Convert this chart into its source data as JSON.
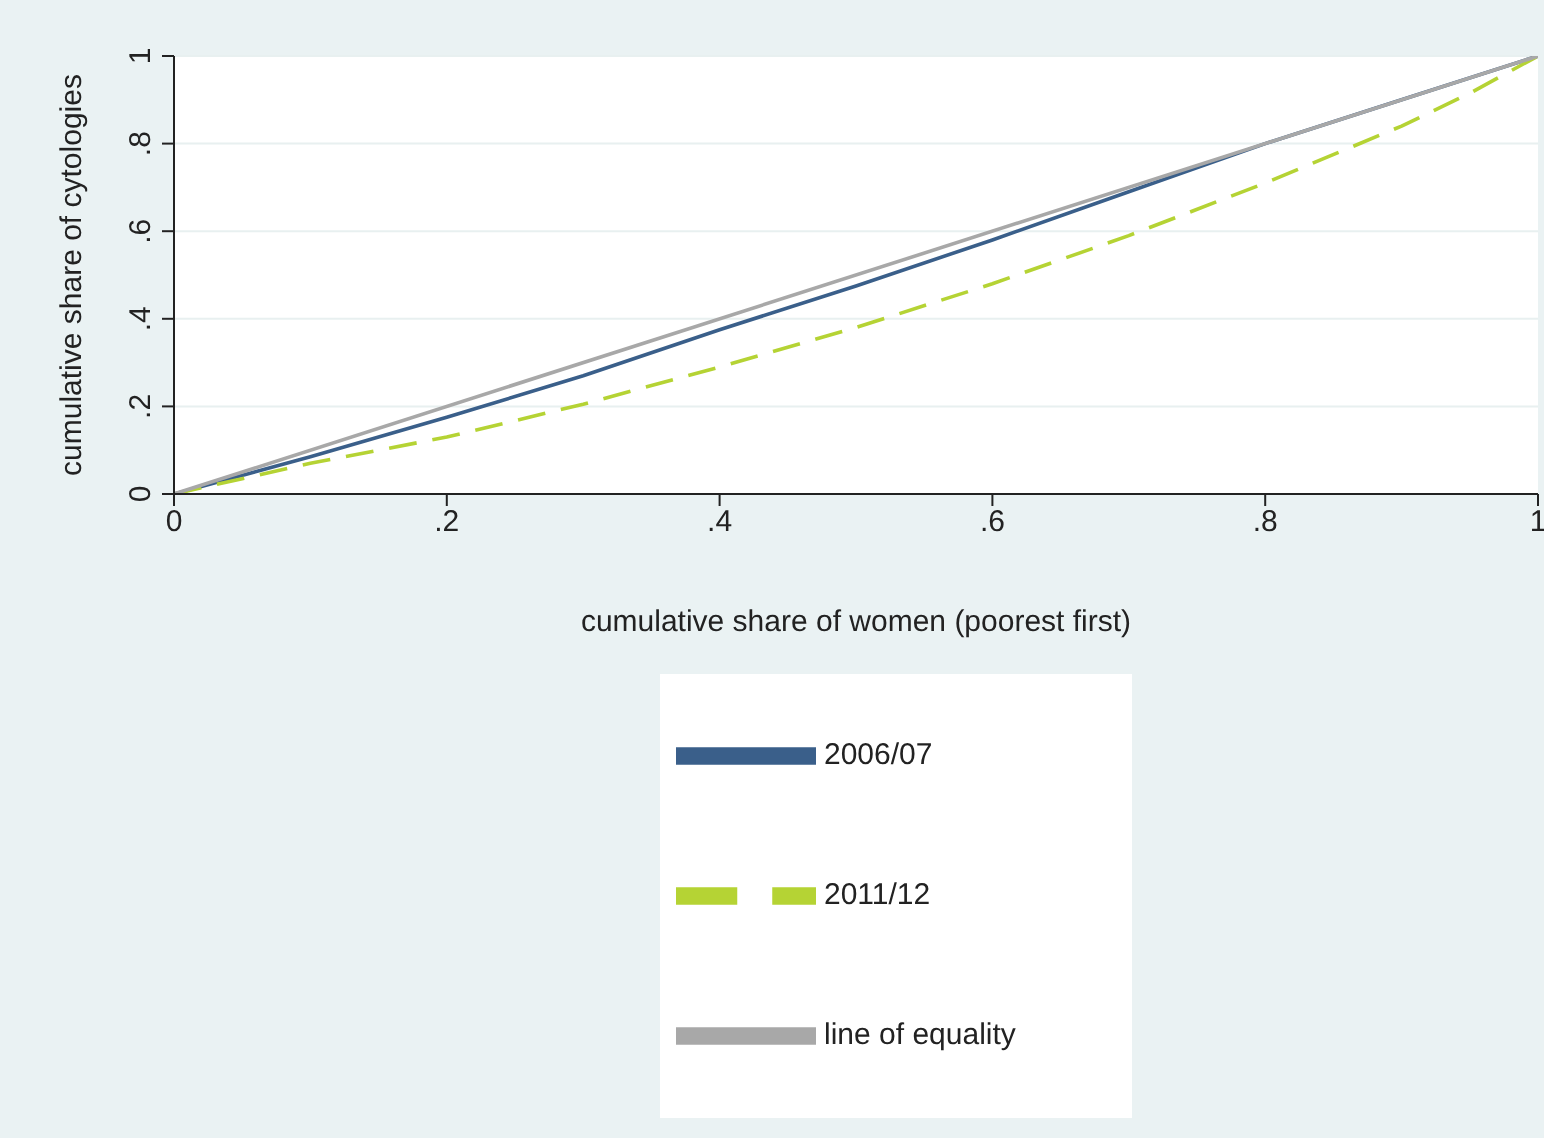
{
  "chart_data": {
    "type": "line",
    "xlabel": "cumulative share of women (poorest first)",
    "ylabel": "cumulative share of cytologies",
    "xlim": [
      0,
      1
    ],
    "ylim": [
      0,
      1
    ],
    "xticks": [
      0,
      {
        "value": 0.2,
        "label": ".2"
      },
      {
        "value": 0.4,
        "label": ".4"
      },
      {
        "value": 0.6,
        "label": ".6"
      },
      {
        "value": 0.8,
        "label": ".8"
      },
      1
    ],
    "yticks": [
      0,
      {
        "value": 0.2,
        "label": ".2"
      },
      {
        "value": 0.4,
        "label": ".4"
      },
      {
        "value": 0.6,
        "label": ".6"
      },
      {
        "value": 0.8,
        "label": ".8"
      },
      1
    ],
    "grid": "y",
    "legend": "bottom",
    "marker": "none",
    "series": [
      {
        "name": "2006/07",
        "color": "#3a5f8a",
        "line_style": "solid",
        "x": [
          0,
          0.1,
          0.2,
          0.3,
          0.4,
          0.5,
          0.6,
          0.7,
          0.8,
          0.9,
          1
        ],
        "values": [
          0,
          0.085,
          0.175,
          0.27,
          0.375,
          0.475,
          0.58,
          0.69,
          0.8,
          0.9,
          1
        ]
      },
      {
        "name": "2011/12",
        "color": "#b5d334",
        "line_style": "dashed",
        "x": [
          0,
          0.05,
          0.1,
          0.2,
          0.3,
          0.4,
          0.5,
          0.6,
          0.7,
          0.8,
          0.9,
          0.95,
          1
        ],
        "values": [
          0,
          0.035,
          0.07,
          0.13,
          0.205,
          0.29,
          0.38,
          0.48,
          0.59,
          0.71,
          0.84,
          0.915,
          1
        ]
      },
      {
        "name": "line of equality",
        "color": "#a8a8a8",
        "line_style": "solid",
        "x": [
          0,
          1
        ],
        "values": [
          0,
          1
        ]
      }
    ]
  }
}
